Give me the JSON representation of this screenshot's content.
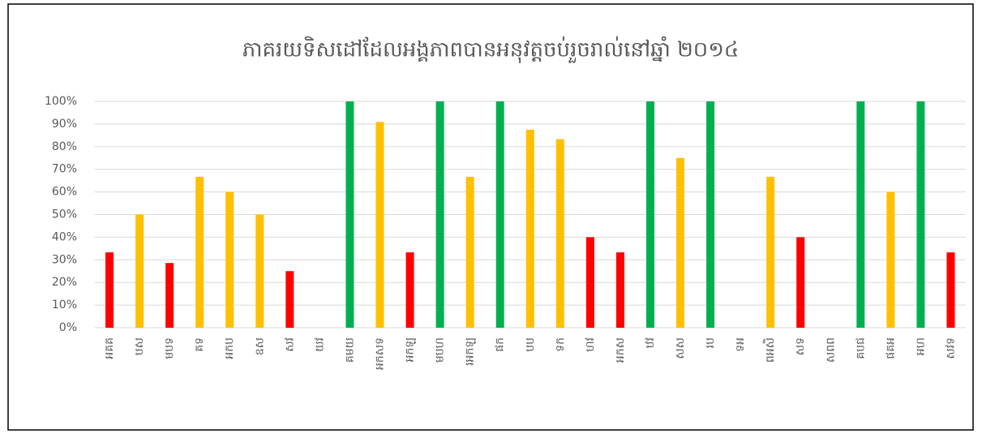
{
  "chart_data": {
    "type": "bar",
    "title": "ភាគរយទិសដៅដែលអង្គភាពបានអនុវត្តចប់រួចរាល់នៅឆ្នាំ ២០១៤",
    "categories": [
      "អគគ",
      "បស",
      "មបទ",
      "គទ",
      "អកប",
      "ឧស",
      "សវ",
      "យវ",
      "គមយ",
      "អកសទ",
      "អកឡ",
      "មបហ",
      "រអកឡ",
      "ផក",
      "បប",
      "ទក",
      "ហវ",
      "អកស",
      "ឋវ",
      "សស",
      "រប",
      "ទអ",
      "ពអសិ",
      "សទ",
      "សពព",
      "គបជ",
      "ផគអ",
      "អហ",
      "សវទ"
    ],
    "values": [
      33.3,
      50,
      28.6,
      66.7,
      60,
      50,
      25,
      0,
      100,
      90.9,
      33.3,
      100,
      66.7,
      100,
      87.5,
      83.3,
      40,
      33.3,
      100,
      75,
      100,
      0,
      66.7,
      40,
      0,
      100,
      60,
      100,
      33.3
    ],
    "colors": [
      "#ff0000",
      "#ffc000",
      "#ff0000",
      "#ffc000",
      "#ffc000",
      "#ffc000",
      "#ff0000",
      "#ff0000",
      "#00b050",
      "#ffc000",
      "#ff0000",
      "#00b050",
      "#ffc000",
      "#00b050",
      "#ffc000",
      "#ffc000",
      "#ff0000",
      "#ff0000",
      "#00b050",
      "#ffc000",
      "#00b050",
      "#ff0000",
      "#ffc000",
      "#ff0000",
      "#ff0000",
      "#00b050",
      "#ffc000",
      "#00b050",
      "#ff0000"
    ],
    "ylim": [
      0,
      100
    ],
    "yticks": [
      {
        "value": 0,
        "label": "0%"
      },
      {
        "value": 10,
        "label": "10%"
      },
      {
        "value": 20,
        "label": "20%"
      },
      {
        "value": 30,
        "label": "30%"
      },
      {
        "value": 40,
        "label": "40%"
      },
      {
        "value": 50,
        "label": "50%"
      },
      {
        "value": 60,
        "label": "60%"
      },
      {
        "value": 70,
        "label": "70%"
      },
      {
        "value": 80,
        "label": "80%"
      },
      {
        "value": 90,
        "label": "90%"
      },
      {
        "value": 100,
        "label": "100%"
      }
    ],
    "grid": true
  }
}
